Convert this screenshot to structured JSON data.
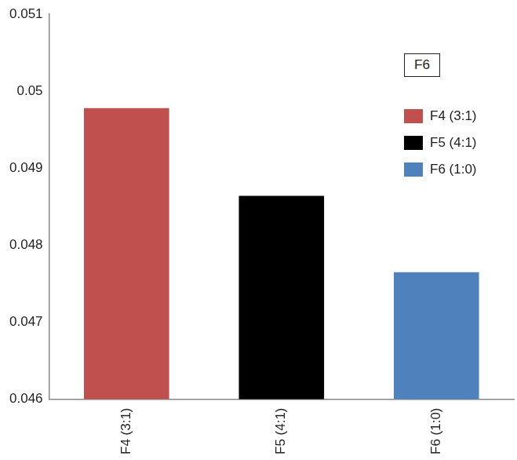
{
  "chart_data": {
    "type": "bar",
    "title": "F6",
    "categories": [
      "F4 (3:1)",
      "F5 (4:1)",
      "F6 (1:0)"
    ],
    "values": [
      0.04978,
      0.04864,
      0.04765
    ],
    "colors": [
      "#c0504d",
      "#000000",
      "#4f81bd"
    ],
    "ylim": [
      0.046,
      0.051
    ],
    "yticks": [
      0.046,
      0.047,
      0.048,
      0.049,
      0.05,
      0.051
    ],
    "grid": false,
    "legend": "right"
  }
}
